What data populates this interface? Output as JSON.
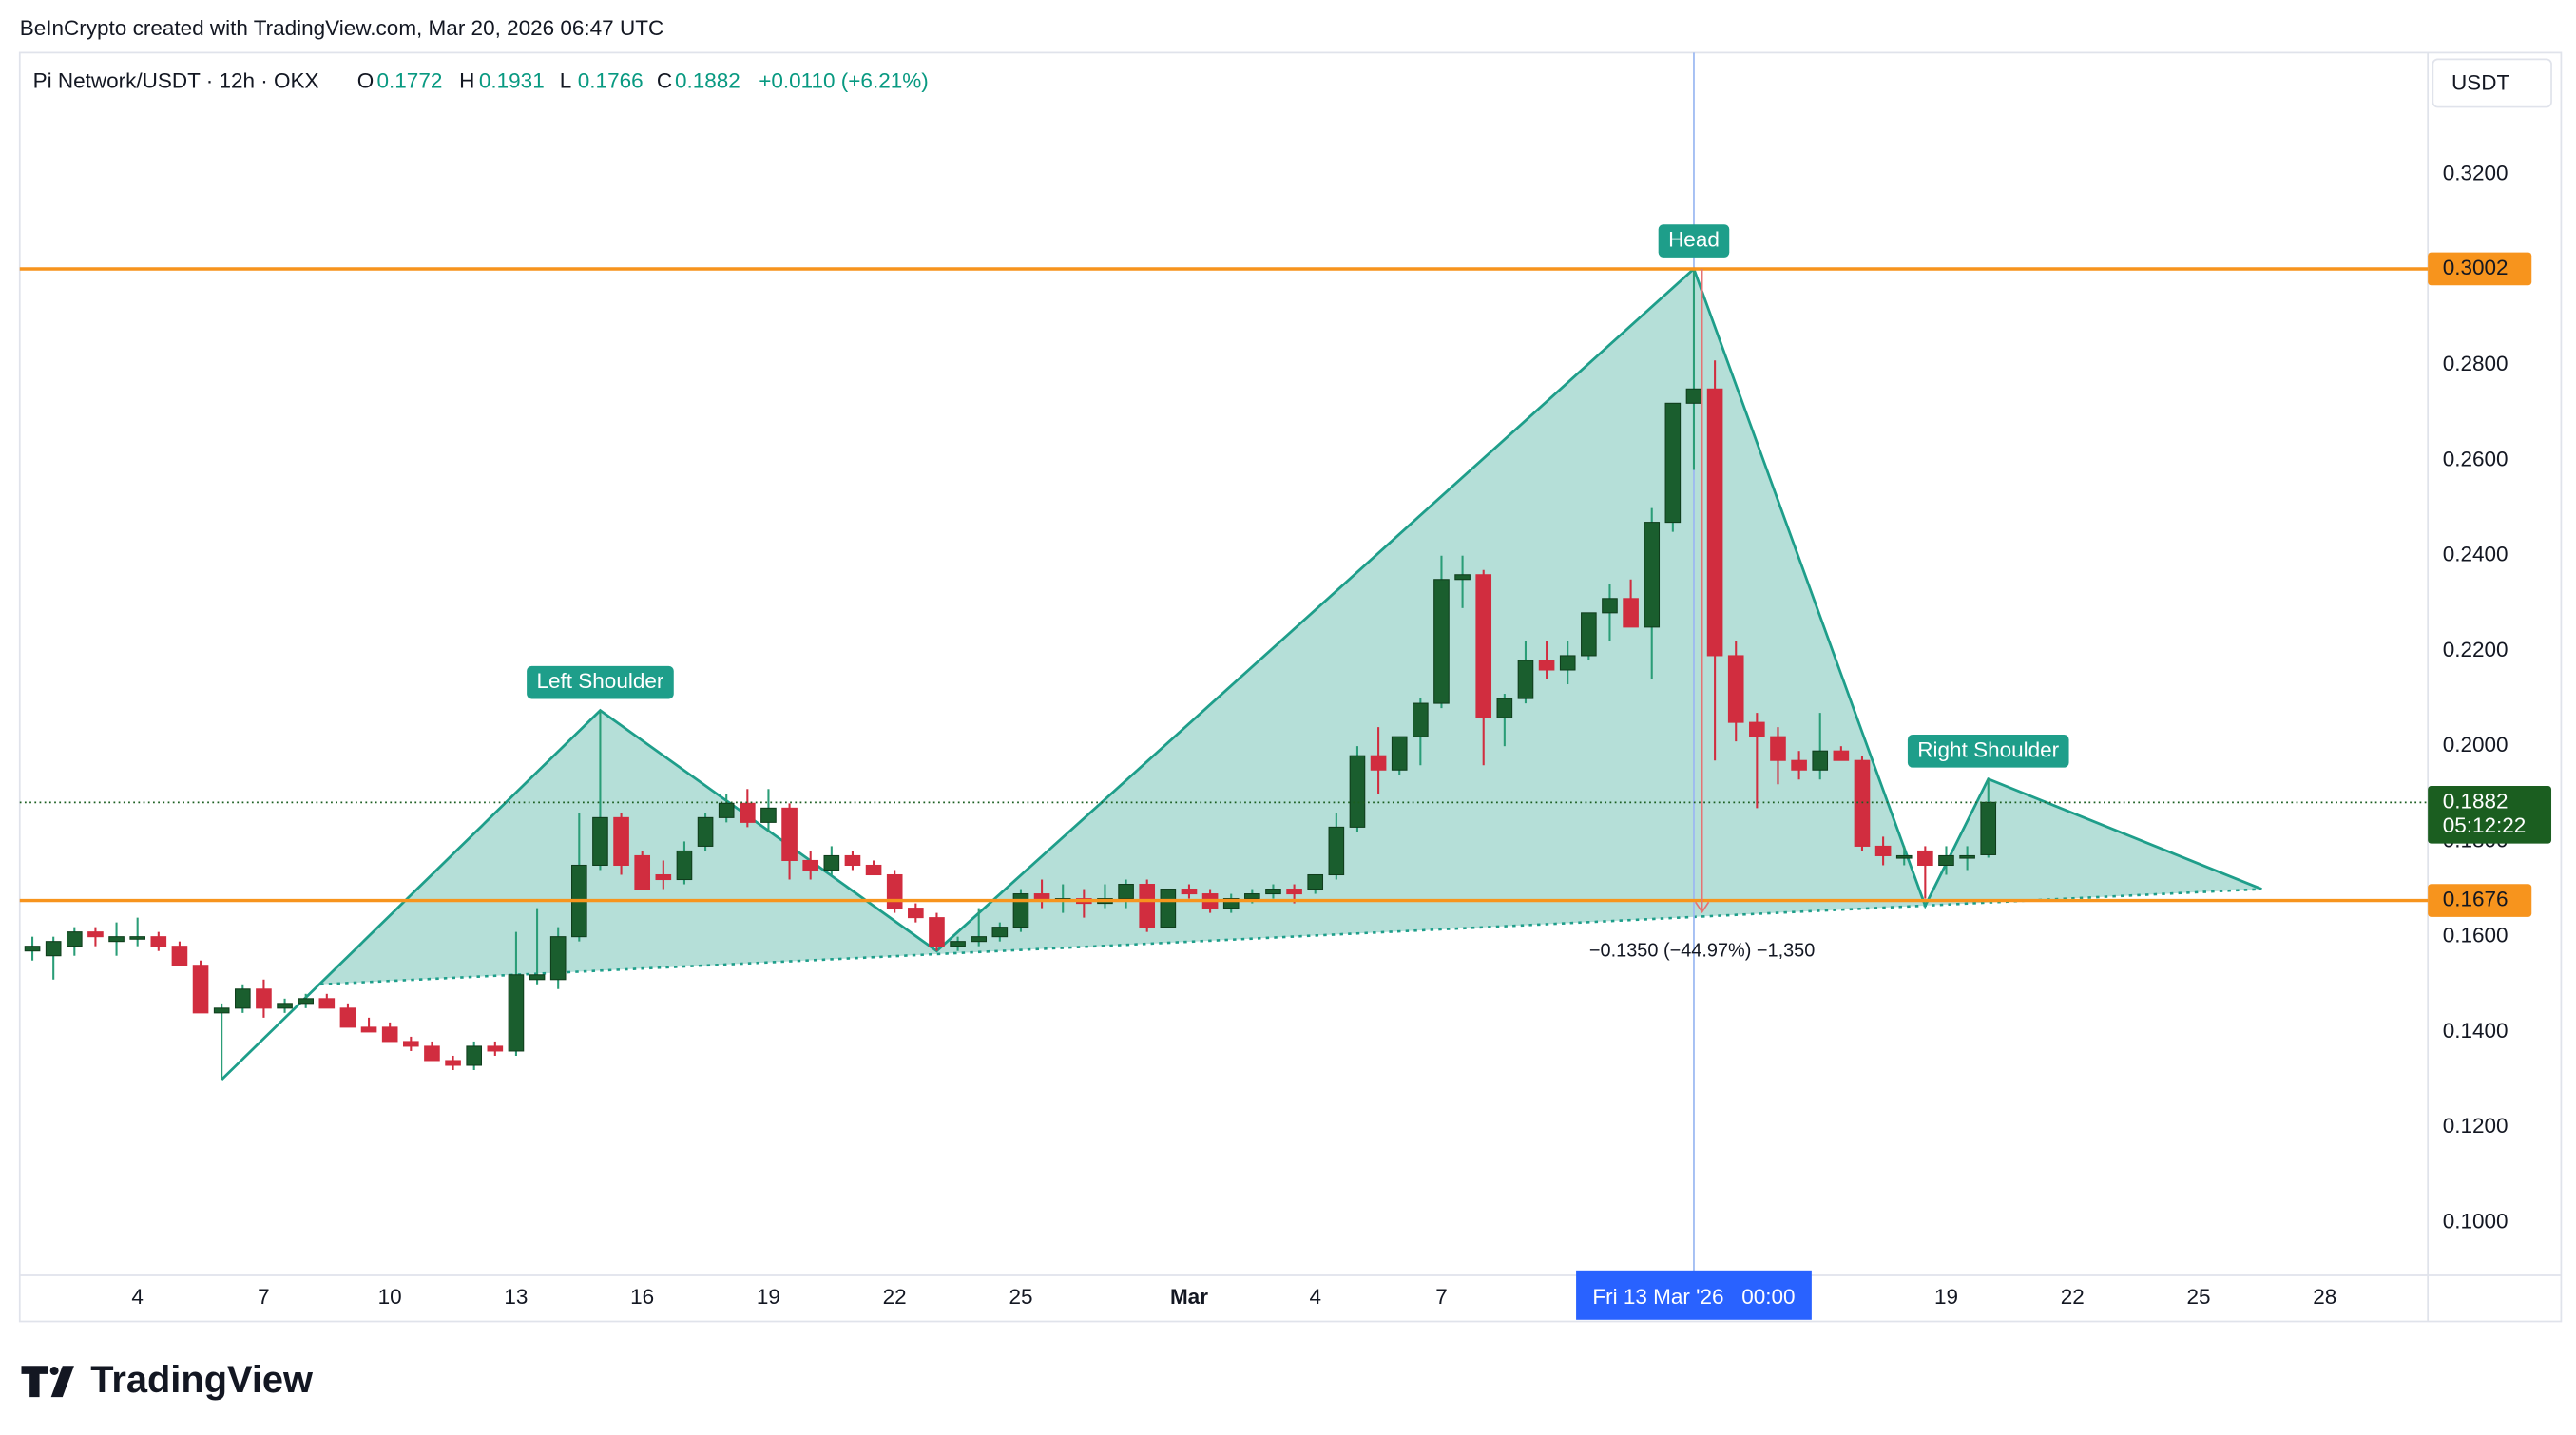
{
  "header": {
    "credit": "BeInCrypto created with TradingView.com, Mar 20, 2026 06:47 UTC",
    "logo": "TradingView"
  },
  "chart_data": {
    "type": "candlestick",
    "symbol": "Pi Network/USDT · 12h · OKX",
    "ohlc_legend": {
      "open_label": "O",
      "open": 0.1772,
      "high_label": "H",
      "high": 0.1931,
      "low_label": "L",
      "low": 0.1766,
      "close_label": "C",
      "close": 0.1882,
      "change": "+0.0110 (+6.21%)"
    },
    "currency": "USDT",
    "up_color": "#1a5e2e",
    "down_color": "#d12d3f",
    "open": [
      0.157,
      0.156,
      0.158,
      0.161,
      0.159,
      0.16,
      0.16,
      0.158,
      0.154,
      0.144,
      0.145,
      0.149,
      0.145,
      0.146,
      0.147,
      0.145,
      0.141,
      0.141,
      0.138,
      0.137,
      0.134,
      0.133,
      0.137,
      0.136,
      0.151,
      0.151,
      0.16,
      0.175,
      0.185,
      0.177,
      0.173,
      0.172,
      0.179,
      0.185,
      0.188,
      0.184,
      0.187,
      0.176,
      0.174,
      0.177,
      0.175,
      0.173,
      0.166,
      0.164,
      0.158,
      0.159,
      0.16,
      0.162,
      0.169,
      0.168,
      0.168,
      0.167,
      0.168,
      0.171,
      0.162,
      0.17,
      0.169,
      0.166,
      0.168,
      0.169,
      0.17,
      0.17,
      0.173,
      0.183,
      0.198,
      0.195,
      0.202,
      0.209,
      0.235,
      0.236,
      0.206,
      0.21,
      0.218,
      0.216,
      0.219,
      0.228,
      0.231,
      0.225,
      0.247,
      0.272,
      0.275,
      0.219,
      0.205,
      0.202,
      0.197,
      0.195,
      0.199,
      0.197,
      0.179,
      0.177,
      0.178,
      0.175,
      0.177,
      0.1772
    ],
    "high": [
      0.16,
      0.16,
      0.162,
      0.162,
      0.163,
      0.164,
      0.161,
      0.159,
      0.155,
      0.146,
      0.15,
      0.151,
      0.147,
      0.148,
      0.148,
      0.146,
      0.143,
      0.142,
      0.139,
      0.138,
      0.135,
      0.138,
      0.138,
      0.161,
      0.166,
      0.162,
      0.186,
      0.2075,
      0.186,
      0.178,
      0.176,
      0.18,
      0.186,
      0.19,
      0.191,
      0.191,
      0.188,
      0.178,
      0.179,
      0.178,
      0.176,
      0.174,
      0.167,
      0.165,
      0.16,
      0.166,
      0.163,
      0.17,
      0.172,
      0.171,
      0.17,
      0.171,
      0.172,
      0.172,
      0.17,
      0.171,
      0.17,
      0.169,
      0.17,
      0.171,
      0.171,
      0.173,
      0.186,
      0.2,
      0.204,
      0.202,
      0.21,
      0.24,
      0.24,
      0.237,
      0.211,
      0.222,
      0.222,
      0.222,
      0.228,
      0.234,
      0.235,
      0.25,
      0.272,
      0.3002,
      0.281,
      0.222,
      0.207,
      0.204,
      0.199,
      0.207,
      0.2,
      0.198,
      0.181,
      0.179,
      0.179,
      0.179,
      0.179,
      0.1931
    ],
    "low": [
      0.155,
      0.151,
      0.156,
      0.158,
      0.156,
      0.158,
      0.157,
      0.154,
      0.144,
      0.13,
      0.144,
      0.143,
      0.144,
      0.145,
      0.145,
      0.141,
      0.14,
      0.138,
      0.136,
      0.134,
      0.132,
      0.132,
      0.135,
      0.135,
      0.15,
      0.149,
      0.159,
      0.174,
      0.173,
      0.17,
      0.17,
      0.171,
      0.178,
      0.184,
      0.183,
      0.182,
      0.172,
      0.172,
      0.173,
      0.174,
      0.173,
      0.165,
      0.163,
      0.157,
      0.157,
      0.158,
      0.159,
      0.161,
      0.166,
      0.165,
      0.164,
      0.166,
      0.166,
      0.161,
      0.162,
      0.168,
      0.165,
      0.165,
      0.167,
      0.168,
      0.167,
      0.169,
      0.172,
      0.182,
      0.19,
      0.194,
      0.196,
      0.208,
      0.229,
      0.196,
      0.2,
      0.209,
      0.214,
      0.213,
      0.218,
      0.222,
      0.225,
      0.214,
      0.245,
      0.258,
      0.197,
      0.201,
      0.187,
      0.192,
      0.193,
      0.193,
      0.197,
      0.178,
      0.175,
      0.175,
      0.168,
      0.173,
      0.174,
      0.1766
    ],
    "close": [
      0.158,
      0.159,
      0.161,
      0.16,
      0.16,
      0.16,
      0.158,
      0.154,
      0.144,
      0.145,
      0.149,
      0.145,
      0.146,
      0.147,
      0.145,
      0.141,
      0.14,
      0.138,
      0.137,
      0.134,
      0.133,
      0.137,
      0.136,
      0.152,
      0.152,
      0.16,
      0.175,
      0.185,
      0.175,
      0.17,
      0.172,
      0.178,
      0.185,
      0.188,
      0.184,
      0.187,
      0.176,
      0.174,
      0.177,
      0.175,
      0.173,
      0.166,
      0.164,
      0.158,
      0.159,
      0.16,
      0.162,
      0.169,
      0.168,
      0.168,
      0.167,
      0.168,
      0.171,
      0.162,
      0.17,
      0.169,
      0.166,
      0.168,
      0.169,
      0.17,
      0.169,
      0.173,
      0.183,
      0.198,
      0.195,
      0.202,
      0.209,
      0.235,
      0.236,
      0.206,
      0.21,
      0.218,
      0.216,
      0.219,
      0.228,
      0.231,
      0.225,
      0.247,
      0.272,
      0.275,
      0.219,
      0.205,
      0.202,
      0.197,
      0.195,
      0.199,
      0.197,
      0.179,
      0.177,
      0.177,
      0.175,
      0.177,
      0.177,
      0.1882
    ],
    "xlim": [
      -0.6,
      113.9
    ],
    "xticks": [
      {
        "value": 5,
        "label": "4"
      },
      {
        "value": 11,
        "label": "7"
      },
      {
        "value": 17,
        "label": "10"
      },
      {
        "value": 23,
        "label": "13"
      },
      {
        "value": 29,
        "label": "16"
      },
      {
        "value": 35,
        "label": "19"
      },
      {
        "value": 41,
        "label": "22"
      },
      {
        "value": 47,
        "label": "25"
      },
      {
        "value": 55,
        "label": "Mar"
      },
      {
        "value": 61,
        "label": "4"
      },
      {
        "value": 67,
        "label": "7"
      },
      {
        "value": 91,
        "label": "19"
      },
      {
        "value": 97,
        "label": "22"
      },
      {
        "value": 103,
        "label": "25"
      },
      {
        "value": 109,
        "label": "28"
      }
    ],
    "ylim": [
      0.0889,
      0.3456
    ],
    "yticks": [
      {
        "value": 0.1,
        "label": "0.1000"
      },
      {
        "value": 0.12,
        "label": "0.1200"
      },
      {
        "value": 0.14,
        "label": "0.1400"
      },
      {
        "value": 0.16,
        "label": "0.1600"
      },
      {
        "value": 0.18,
        "label": "0.1800"
      },
      {
        "value": 0.2,
        "label": "0.2000"
      },
      {
        "value": 0.22,
        "label": "0.2200"
      },
      {
        "value": 0.24,
        "label": "0.2400"
      },
      {
        "value": 0.26,
        "label": "0.2600"
      },
      {
        "value": 0.28,
        "label": "0.2800"
      },
      {
        "value": 0.3,
        "label": "0.3000"
      },
      {
        "value": 0.32,
        "label": "0.3200"
      }
    ],
    "grid": false,
    "levels": [
      {
        "value": 0.3002,
        "color": "#f7941d"
      },
      {
        "value": 0.1676,
        "color": "#f7941d"
      }
    ],
    "last_price": {
      "value": 0.1882,
      "countdown": "05:12:22",
      "color": "#1b5e20"
    },
    "pattern": {
      "color": "#1e9e8a",
      "line": [
        {
          "x": 9,
          "y": 0.13
        },
        {
          "x": 27,
          "y": 0.2075,
          "label": "Left Shoulder"
        },
        {
          "x": 43,
          "y": 0.157
        },
        {
          "x": 79,
          "y": 0.3002,
          "label": "Head"
        },
        {
          "x": 90,
          "y": 0.1665
        },
        {
          "x": 93,
          "y": 0.1931,
          "label": "Right Shoulder"
        },
        {
          "x": 106,
          "y": 0.17
        }
      ],
      "neckline": [
        {
          "x": 13.7,
          "y": 0.15
        },
        {
          "x": 106,
          "y": 0.17
        }
      ]
    },
    "measure": {
      "x": 79,
      "from": 0.3002,
      "to": 0.1652,
      "label": "−0.1350 (−44.97%) −1,350"
    },
    "crosshair": {
      "x": 79,
      "label": "Fri 13 Mar '26   00:00"
    }
  }
}
